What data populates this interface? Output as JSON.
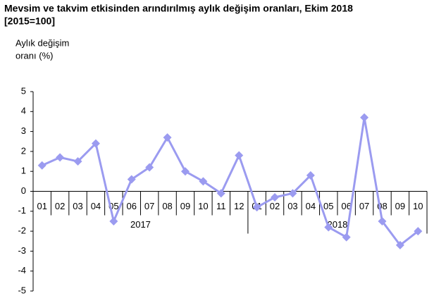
{
  "chart_data": {
    "type": "line",
    "title": "Mevsim ve takvim etkisinden arındırılmış aylık değişim oranları, Ekim 2018",
    "subtitle": "[2015=100]",
    "y_label": [
      "Aylık değişim",
      "oranı (%)"
    ],
    "groups": [
      {
        "label": "2017",
        "categories": [
          "01",
          "02",
          "03",
          "04",
          "05",
          "06",
          "07",
          "08",
          "09",
          "10",
          "11",
          "12"
        ]
      },
      {
        "label": "2018",
        "categories": [
          "01",
          "02",
          "03",
          "04",
          "05",
          "06",
          "07",
          "08",
          "09",
          "10"
        ]
      }
    ],
    "series": [
      {
        "name": "Aylık değişim oranı",
        "color": "#9b9bf0",
        "values": [
          1.3,
          1.7,
          1.5,
          2.4,
          -1.5,
          0.6,
          1.2,
          2.7,
          1.0,
          0.5,
          -0.1,
          1.8,
          -0.8,
          -0.3,
          -0.1,
          0.8,
          -1.8,
          -2.3,
          3.7,
          -1.5,
          -2.7,
          -2.0
        ]
      }
    ],
    "ylim": [
      -5,
      5
    ],
    "yticks": [
      -5,
      -4,
      -3,
      -2,
      -1,
      0,
      1,
      2,
      3,
      4,
      5
    ]
  }
}
